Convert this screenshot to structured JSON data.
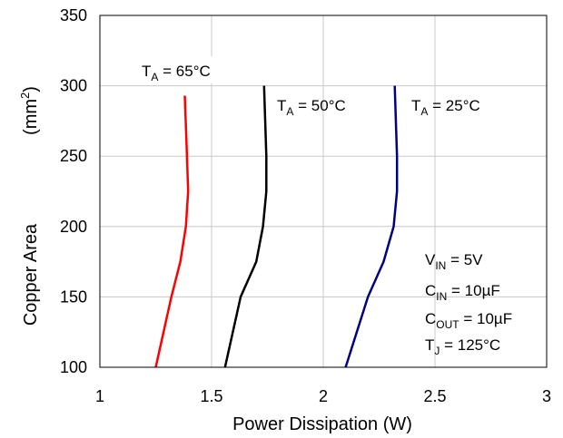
{
  "chart_data": {
    "type": "line",
    "title": "",
    "xlabel": "Power Dissipation (W)",
    "ylabel": "Copper Area",
    "ylabel_unit": "(mm2)",
    "xlim": [
      1,
      3
    ],
    "ylim": [
      100,
      350
    ],
    "x_ticks": [
      "1",
      "1.5",
      "2",
      "2.5",
      "3"
    ],
    "y_ticks": [
      "100",
      "150",
      "200",
      "250",
      "300",
      "350"
    ],
    "grid": true,
    "series": [
      {
        "name": "TA = 65°C",
        "color": "#ff0000",
        "points": [
          [
            1.25,
            100
          ],
          [
            1.32,
            150
          ],
          [
            1.36,
            175
          ],
          [
            1.385,
            200
          ],
          [
            1.395,
            225
          ],
          [
            1.39,
            250
          ],
          [
            1.38,
            293
          ]
        ]
      },
      {
        "name": "TA = 50°C",
        "color": "#000000",
        "points": [
          [
            1.56,
            100
          ],
          [
            1.63,
            150
          ],
          [
            1.7,
            175
          ],
          [
            1.73,
            200
          ],
          [
            1.745,
            225
          ],
          [
            1.745,
            250
          ],
          [
            1.735,
            300
          ]
        ]
      },
      {
        "name": "TA = 25°C",
        "color": "#000080",
        "points": [
          [
            2.1,
            100
          ],
          [
            2.2,
            150
          ],
          [
            2.27,
            175
          ],
          [
            2.315,
            200
          ],
          [
            2.33,
            225
          ],
          [
            2.33,
            250
          ],
          [
            2.32,
            300
          ]
        ]
      }
    ],
    "annotations": [
      {
        "text": "VIN = 5V"
      },
      {
        "text": "CIN = 10µF"
      },
      {
        "text": "COUT = 10µF"
      },
      {
        "text": "TJ = 125°C"
      }
    ]
  }
}
